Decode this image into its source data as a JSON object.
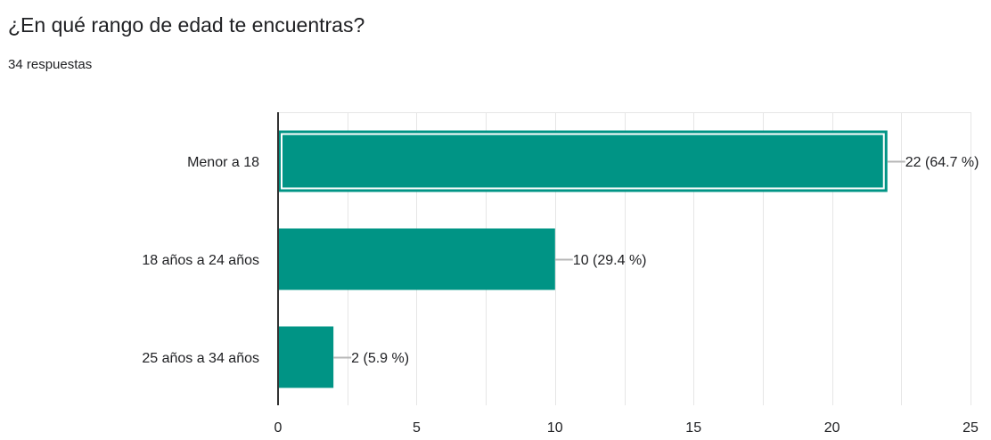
{
  "header": {
    "question": "¿En qué rango de edad te encuentras?",
    "responses": "34 respuestas"
  },
  "colors": {
    "bar": "#009485",
    "bar_selected_outline": "#ffffff",
    "axis": "#333333",
    "gridline": "#e6e6e6",
    "leader_line": "#b7b7b7",
    "text": "#202124"
  },
  "chart_data": {
    "type": "bar",
    "orientation": "horizontal",
    "title": "",
    "xlabel": "",
    "ylabel": "",
    "categories": [
      "Menor a 18",
      "18 años a 24 años",
      "25 años a 34 años"
    ],
    "values": [
      22,
      10,
      2
    ],
    "data_labels": [
      "22 (64.7 %)",
      "10 (29.4 %)",
      "2 (5.9 %)"
    ],
    "xlim": [
      0,
      25
    ],
    "xticks": [
      0,
      5,
      10,
      15,
      20,
      25
    ],
    "grid": true,
    "highlighted_category": "Menor a 18"
  }
}
